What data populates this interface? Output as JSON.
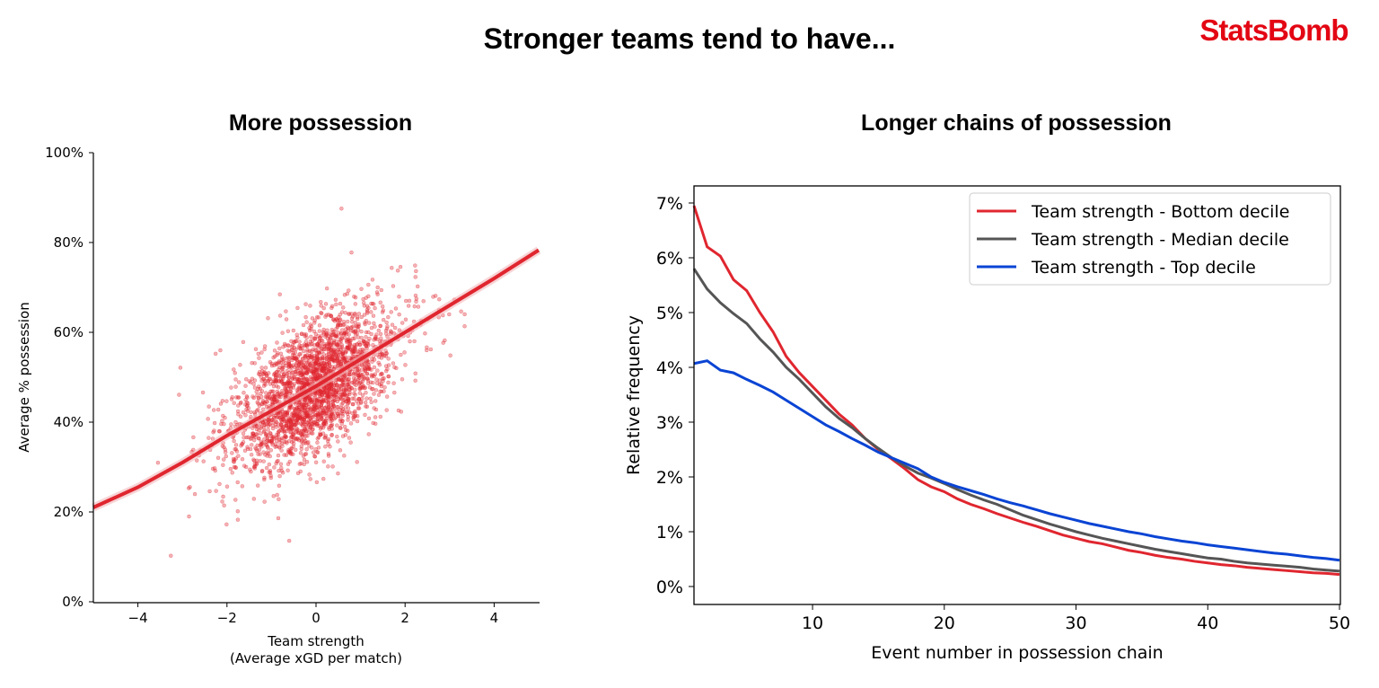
{
  "header": {
    "title": "Stronger teams tend to have...",
    "logo": "StatsBomb",
    "brand_color": "#e30613"
  },
  "chart_data": [
    {
      "type": "scatter",
      "title": "More possession",
      "xlabel": "Team strength",
      "xlabel2": "(Average xGD per match)",
      "ylabel": "Average % possession",
      "xlim": [
        -5,
        5
      ],
      "ylim": [
        0,
        100
      ],
      "xticks": [
        -4,
        -2,
        0,
        2,
        4
      ],
      "xtick_labels": [
        "−4",
        "−2",
        "0",
        "2",
        "4"
      ],
      "yticks": [
        0,
        20,
        40,
        60,
        80,
        100
      ],
      "ytick_labels": [
        "0%",
        "20%",
        "40%",
        "60%",
        "80%",
        "100%"
      ],
      "color": "#e0262f",
      "scatter_sample": {
        "n": 2600,
        "x_mean": -0.05,
        "x_sd": 0.85,
        "intercept": 48,
        "slope": 5.6,
        "resid_sd": 7
      },
      "fit_line": {
        "x": [
          -5,
          -4,
          -3,
          -2,
          -1,
          0,
          1,
          2,
          3,
          4,
          5
        ],
        "y": [
          21,
          25.5,
          31,
          37,
          42.5,
          48,
          54,
          60,
          66,
          72,
          78.3
        ]
      }
    },
    {
      "type": "line",
      "title": "Longer chains of possession",
      "xlabel": "Event number in possession chain",
      "ylabel": "Relative frequency",
      "xlim": [
        1,
        50
      ],
      "ylim": [
        -0.33,
        7.3
      ],
      "xticks": [
        10,
        20,
        30,
        40,
        50
      ],
      "xtick_labels": [
        "10",
        "20",
        "30",
        "40",
        "50"
      ],
      "yticks": [
        0,
        1,
        2,
        3,
        4,
        5,
        6,
        7
      ],
      "ytick_labels": [
        "0%",
        "1%",
        "2%",
        "3%",
        "4%",
        "5%",
        "6%",
        "7%"
      ],
      "legend_position": "top-right",
      "series": [
        {
          "name": "Team strength - Bottom decile",
          "color": "#e0262f",
          "values": [
            6.95,
            6.2,
            6.03,
            5.6,
            5.4,
            5.0,
            4.65,
            4.2,
            3.9,
            3.65,
            3.4,
            3.15,
            2.95,
            2.7,
            2.5,
            2.33,
            2.15,
            1.95,
            1.82,
            1.73,
            1.6,
            1.5,
            1.42,
            1.33,
            1.25,
            1.17,
            1.1,
            1.02,
            0.94,
            0.88,
            0.82,
            0.78,
            0.72,
            0.66,
            0.62,
            0.57,
            0.53,
            0.5,
            0.46,
            0.43,
            0.4,
            0.38,
            0.35,
            0.33,
            0.31,
            0.29,
            0.27,
            0.25,
            0.24,
            0.22
          ]
        },
        {
          "name": "Team strength - Median decile",
          "color": "#555555",
          "values": [
            5.8,
            5.43,
            5.18,
            4.98,
            4.8,
            4.52,
            4.28,
            4.0,
            3.78,
            3.53,
            3.28,
            3.07,
            2.9,
            2.7,
            2.52,
            2.35,
            2.2,
            2.07,
            1.98,
            1.88,
            1.77,
            1.67,
            1.58,
            1.5,
            1.4,
            1.3,
            1.22,
            1.14,
            1.07,
            1.0,
            0.94,
            0.88,
            0.83,
            0.78,
            0.73,
            0.68,
            0.64,
            0.6,
            0.56,
            0.52,
            0.5,
            0.46,
            0.43,
            0.41,
            0.39,
            0.37,
            0.35,
            0.32,
            0.3,
            0.28
          ]
        },
        {
          "name": "Team strength - Top decile",
          "color": "#0a44d4",
          "values": [
            4.07,
            4.12,
            3.95,
            3.9,
            3.78,
            3.67,
            3.55,
            3.4,
            3.25,
            3.1,
            2.95,
            2.83,
            2.7,
            2.58,
            2.45,
            2.35,
            2.25,
            2.15,
            2.0,
            1.9,
            1.82,
            1.75,
            1.68,
            1.6,
            1.53,
            1.47,
            1.4,
            1.33,
            1.27,
            1.21,
            1.15,
            1.1,
            1.05,
            1.0,
            0.96,
            0.91,
            0.87,
            0.83,
            0.8,
            0.76,
            0.73,
            0.7,
            0.67,
            0.64,
            0.61,
            0.59,
            0.56,
            0.53,
            0.51,
            0.48
          ]
        }
      ]
    }
  ]
}
